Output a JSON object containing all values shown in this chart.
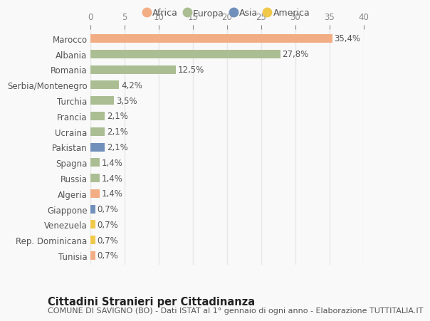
{
  "countries": [
    "Marocco",
    "Albania",
    "Romania",
    "Serbia/Montenegro",
    "Turchia",
    "Francia",
    "Ucraina",
    "Pakistan",
    "Spagna",
    "Russia",
    "Algeria",
    "Giappone",
    "Venezuela",
    "Rep. Dominicana",
    "Tunisia"
  ],
  "values": [
    35.4,
    27.8,
    12.5,
    4.2,
    3.5,
    2.1,
    2.1,
    2.1,
    1.4,
    1.4,
    1.4,
    0.7,
    0.7,
    0.7,
    0.7
  ],
  "labels": [
    "35,4%",
    "27,8%",
    "12,5%",
    "4,2%",
    "3,5%",
    "2,1%",
    "2,1%",
    "2,1%",
    "1,4%",
    "1,4%",
    "1,4%",
    "0,7%",
    "0,7%",
    "0,7%",
    "0,7%"
  ],
  "continents": [
    "Africa",
    "Europa",
    "Europa",
    "Europa",
    "Europa",
    "Europa",
    "Europa",
    "Asia",
    "Europa",
    "Europa",
    "Africa",
    "Asia",
    "America",
    "America",
    "Africa"
  ],
  "continent_colors": {
    "Africa": "#F2AD85",
    "Europa": "#ABBE93",
    "Asia": "#7090BB",
    "America": "#F0C84A"
  },
  "legend_order": [
    "Africa",
    "Europa",
    "Asia",
    "America"
  ],
  "bar_colors": [
    "#F2AD85",
    "#ABBE93",
    "#ABBE93",
    "#ABBE93",
    "#ABBE93",
    "#ABBE93",
    "#ABBE93",
    "#7090BB",
    "#ABBE93",
    "#ABBE93",
    "#F2AD85",
    "#7090BB",
    "#F0C84A",
    "#F0C84A",
    "#F2AD85"
  ],
  "title": "Cittadini Stranieri per Cittadinanza",
  "subtitle": "COMUNE DI SAVIGNO (BO) - Dati ISTAT al 1° gennaio di ogni anno - Elaborazione TUTTITALIA.IT",
  "xlim": [
    0,
    40
  ],
  "xticks": [
    0,
    5,
    10,
    15,
    20,
    25,
    30,
    35,
    40
  ],
  "background_color": "#f9f9f9",
  "grid_color": "#e8e8e8",
  "bar_height": 0.55,
  "label_fontsize": 8.5,
  "tick_fontsize": 8.5,
  "title_fontsize": 10.5,
  "subtitle_fontsize": 8.0,
  "ytick_fontsize": 8.5
}
